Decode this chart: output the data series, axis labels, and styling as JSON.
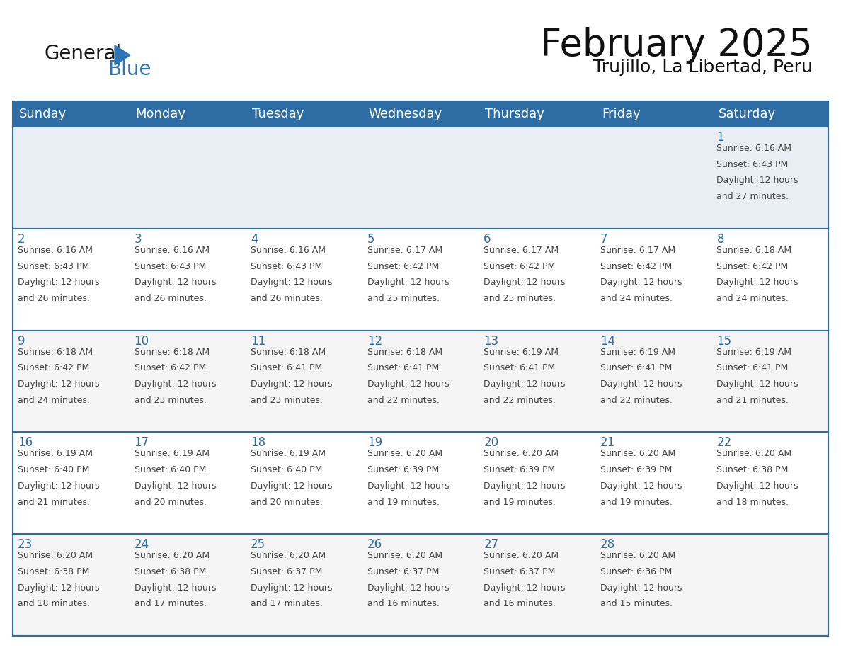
{
  "title": "February 2025",
  "subtitle": "Trujillo, La Libertad, Peru",
  "days_of_week": [
    "Sunday",
    "Monday",
    "Tuesday",
    "Wednesday",
    "Thursday",
    "Friday",
    "Saturday"
  ],
  "header_bg": "#2E6DA4",
  "header_text": "#FFFFFF",
  "row0_bg": "#E8EEF4",
  "row_odd_bg": "#FFFFFF",
  "row_even_bg": "#F5F5F5",
  "border_color": "#2E6DA4",
  "text_color": "#444444",
  "day_number_color": "#2E6DA4",
  "logo_general_color": "#1a1a1a",
  "logo_blue_color": "#2E75B6",
  "calendar_data": [
    [
      null,
      null,
      null,
      null,
      null,
      null,
      {
        "day": 1,
        "sunrise": "6:16 AM",
        "sunset": "6:43 PM",
        "daylight": "12 hours and 27 minutes."
      }
    ],
    [
      {
        "day": 2,
        "sunrise": "6:16 AM",
        "sunset": "6:43 PM",
        "daylight": "12 hours and 26 minutes."
      },
      {
        "day": 3,
        "sunrise": "6:16 AM",
        "sunset": "6:43 PM",
        "daylight": "12 hours and 26 minutes."
      },
      {
        "day": 4,
        "sunrise": "6:16 AM",
        "sunset": "6:43 PM",
        "daylight": "12 hours and 26 minutes."
      },
      {
        "day": 5,
        "sunrise": "6:17 AM",
        "sunset": "6:42 PM",
        "daylight": "12 hours and 25 minutes."
      },
      {
        "day": 6,
        "sunrise": "6:17 AM",
        "sunset": "6:42 PM",
        "daylight": "12 hours and 25 minutes."
      },
      {
        "day": 7,
        "sunrise": "6:17 AM",
        "sunset": "6:42 PM",
        "daylight": "12 hours and 24 minutes."
      },
      {
        "day": 8,
        "sunrise": "6:18 AM",
        "sunset": "6:42 PM",
        "daylight": "12 hours and 24 minutes."
      }
    ],
    [
      {
        "day": 9,
        "sunrise": "6:18 AM",
        "sunset": "6:42 PM",
        "daylight": "12 hours and 24 minutes."
      },
      {
        "day": 10,
        "sunrise": "6:18 AM",
        "sunset": "6:42 PM",
        "daylight": "12 hours and 23 minutes."
      },
      {
        "day": 11,
        "sunrise": "6:18 AM",
        "sunset": "6:41 PM",
        "daylight": "12 hours and 23 minutes."
      },
      {
        "day": 12,
        "sunrise": "6:18 AM",
        "sunset": "6:41 PM",
        "daylight": "12 hours and 22 minutes."
      },
      {
        "day": 13,
        "sunrise": "6:19 AM",
        "sunset": "6:41 PM",
        "daylight": "12 hours and 22 minutes."
      },
      {
        "day": 14,
        "sunrise": "6:19 AM",
        "sunset": "6:41 PM",
        "daylight": "12 hours and 22 minutes."
      },
      {
        "day": 15,
        "sunrise": "6:19 AM",
        "sunset": "6:41 PM",
        "daylight": "12 hours and 21 minutes."
      }
    ],
    [
      {
        "day": 16,
        "sunrise": "6:19 AM",
        "sunset": "6:40 PM",
        "daylight": "12 hours and 21 minutes."
      },
      {
        "day": 17,
        "sunrise": "6:19 AM",
        "sunset": "6:40 PM",
        "daylight": "12 hours and 20 minutes."
      },
      {
        "day": 18,
        "sunrise": "6:19 AM",
        "sunset": "6:40 PM",
        "daylight": "12 hours and 20 minutes."
      },
      {
        "day": 19,
        "sunrise": "6:20 AM",
        "sunset": "6:39 PM",
        "daylight": "12 hours and 19 minutes."
      },
      {
        "day": 20,
        "sunrise": "6:20 AM",
        "sunset": "6:39 PM",
        "daylight": "12 hours and 19 minutes."
      },
      {
        "day": 21,
        "sunrise": "6:20 AM",
        "sunset": "6:39 PM",
        "daylight": "12 hours and 19 minutes."
      },
      {
        "day": 22,
        "sunrise": "6:20 AM",
        "sunset": "6:38 PM",
        "daylight": "12 hours and 18 minutes."
      }
    ],
    [
      {
        "day": 23,
        "sunrise": "6:20 AM",
        "sunset": "6:38 PM",
        "daylight": "12 hours and 18 minutes."
      },
      {
        "day": 24,
        "sunrise": "6:20 AM",
        "sunset": "6:38 PM",
        "daylight": "12 hours and 17 minutes."
      },
      {
        "day": 25,
        "sunrise": "6:20 AM",
        "sunset": "6:37 PM",
        "daylight": "12 hours and 17 minutes."
      },
      {
        "day": 26,
        "sunrise": "6:20 AM",
        "sunset": "6:37 PM",
        "daylight": "12 hours and 16 minutes."
      },
      {
        "day": 27,
        "sunrise": "6:20 AM",
        "sunset": "6:37 PM",
        "daylight": "12 hours and 16 minutes."
      },
      {
        "day": 28,
        "sunrise": "6:20 AM",
        "sunset": "6:36 PM",
        "daylight": "12 hours and 15 minutes."
      },
      null
    ]
  ]
}
